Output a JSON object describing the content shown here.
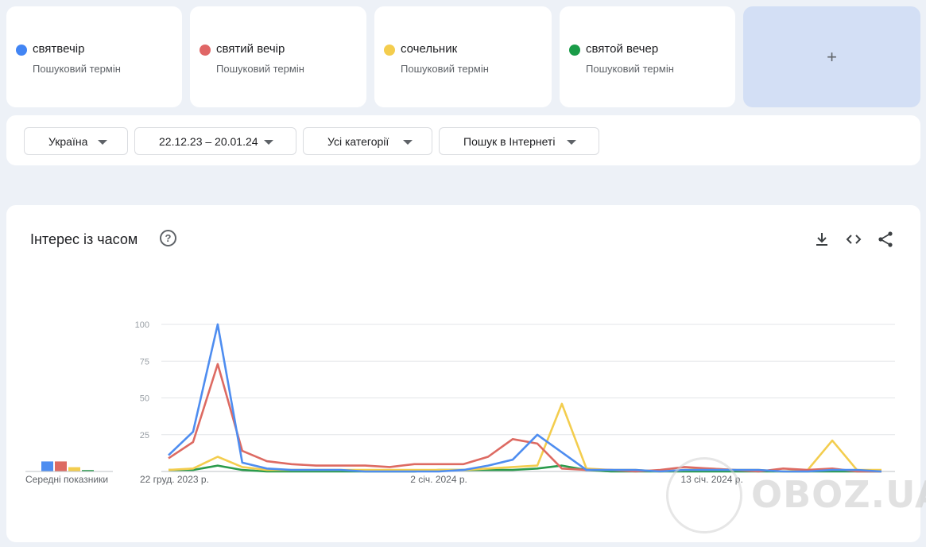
{
  "terms": [
    {
      "name": "святвечір",
      "subtitle": "Пошуковий термін",
      "color": "#4285f4"
    },
    {
      "name": "святий вечір",
      "subtitle": "Пошуковий термін",
      "color": "#db4437"
    },
    {
      "name": "сочельник",
      "subtitle": "Пошуковий термін",
      "color": "#f4c20d"
    },
    {
      "name": "святой вечер",
      "subtitle": "Пошуковий термін",
      "color": "#0f9d58"
    }
  ],
  "add_button": {
    "label": "+"
  },
  "filters": {
    "region": "Україна",
    "date_range": "22.12.23 – 20.01.24",
    "category": "Усі категорії",
    "search_type": "Пошук в Інтернеті"
  },
  "panel": {
    "title": "Інтерес із часом",
    "help_icon": "?",
    "averages_label": "Середні показники"
  },
  "watermark": "OBOZ.UA",
  "chart_data": {
    "type": "line",
    "ylim": [
      0,
      100
    ],
    "yticks": [
      "100",
      "75",
      "50",
      "25"
    ],
    "x_tick_labels": [
      "22 груд. 2023 р.",
      "2 січ. 2024 р.",
      "13 січ. 2024 р."
    ],
    "x": [
      "22.12.23",
      "23.12.23",
      "24.12.23",
      "25.12.23",
      "26.12.23",
      "27.12.23",
      "28.12.23",
      "29.12.23",
      "30.12.23",
      "31.12.23",
      "01.01.24",
      "02.01.24",
      "03.01.24",
      "04.01.24",
      "05.01.24",
      "06.01.24",
      "07.01.24",
      "08.01.24",
      "09.01.24",
      "10.01.24",
      "11.01.24",
      "12.01.24",
      "13.01.24",
      "14.01.24",
      "15.01.24",
      "16.01.24",
      "17.01.24",
      "18.01.24",
      "19.01.24",
      "20.01.24"
    ],
    "series": [
      {
        "name": "святвечір",
        "color": "#4e8df0",
        "values": [
          11,
          27,
          100,
          6,
          2,
          1,
          1,
          1,
          0,
          0,
          0,
          0,
          1,
          4,
          8,
          25,
          13,
          1,
          1,
          1,
          0,
          1,
          1,
          1,
          1,
          0,
          0,
          1,
          1,
          0
        ]
      },
      {
        "name": "святий вечір",
        "color": "#dd6a62",
        "values": [
          9,
          20,
          73,
          14,
          7,
          5,
          4,
          4,
          4,
          3,
          5,
          5,
          5,
          10,
          22,
          19,
          2,
          1,
          1,
          0,
          1,
          3,
          2,
          1,
          0,
          2,
          1,
          2,
          0,
          0
        ]
      },
      {
        "name": "сочельник",
        "color": "#f3cd4e",
        "values": [
          1,
          2,
          10,
          3,
          1,
          1,
          1,
          1,
          1,
          1,
          1,
          1,
          1,
          2,
          3,
          4,
          46,
          2,
          1,
          1,
          0,
          1,
          2,
          1,
          1,
          0,
          1,
          21,
          1,
          1
        ]
      },
      {
        "name": "святой вечер",
        "color": "#2a9b4c",
        "values": [
          1,
          1,
          4,
          1,
          0,
          0,
          0,
          0,
          0,
          0,
          0,
          1,
          1,
          1,
          1,
          2,
          4,
          1,
          0,
          0,
          0,
          0,
          0,
          0,
          0,
          0,
          0,
          0,
          0,
          0
        ]
      }
    ],
    "averages": [
      7,
      7,
      3,
      1
    ]
  }
}
